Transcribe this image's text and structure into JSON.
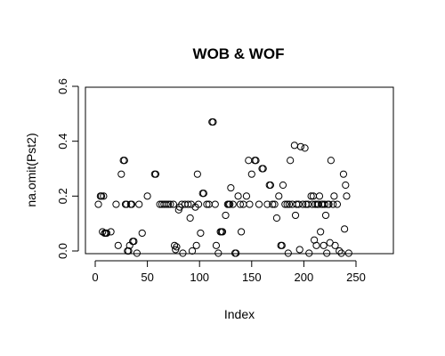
{
  "chart_data": {
    "type": "scatter",
    "title": "WOB & WOF",
    "xlabel": "Index",
    "ylabel": "na.omit(Pst2)",
    "xlim": [
      0,
      270
    ],
    "ylim": [
      0,
      0.6
    ],
    "x_ticks": [
      0,
      50,
      100,
      150,
      200,
      250
    ],
    "y_ticks": [
      0.0,
      0.2,
      0.4,
      0.6
    ],
    "x_tick_labels": [
      "0",
      "50",
      "100",
      "150",
      "200",
      "250"
    ],
    "y_tick_labels": [
      "0.0",
      "0.2",
      "0.4",
      "0.6"
    ],
    "grid": false,
    "marker": "open-circle",
    "series": [
      {
        "points": [
          [
            3,
            0.17
          ],
          [
            5,
            0.2
          ],
          [
            6,
            0.2
          ],
          [
            7,
            0.07
          ],
          [
            8,
            0.2
          ],
          [
            9,
            0.065
          ],
          [
            10,
            0.065
          ],
          [
            11,
            0.065
          ],
          [
            15,
            0.07
          ],
          [
            20,
            0.17
          ],
          [
            22,
            0.02
          ],
          [
            25,
            0.28
          ],
          [
            27,
            0.33
          ],
          [
            28,
            0.33
          ],
          [
            29,
            0.17
          ],
          [
            30,
            0.17
          ],
          [
            31,
            0.0
          ],
          [
            32,
            0.0
          ],
          [
            33,
            0.02
          ],
          [
            34,
            0.17
          ],
          [
            35,
            0.17
          ],
          [
            36,
            0.035
          ],
          [
            37,
            0.035
          ],
          [
            40,
            -0.02
          ],
          [
            42,
            0.17
          ],
          [
            45,
            0.065
          ],
          [
            50,
            0.2
          ],
          [
            57,
            0.28
          ],
          [
            58,
            0.28
          ],
          [
            62,
            0.17
          ],
          [
            64,
            0.17
          ],
          [
            66,
            0.17
          ],
          [
            68,
            0.17
          ],
          [
            70,
            0.17
          ],
          [
            72,
            0.17
          ],
          [
            75,
            0.17
          ],
          [
            76,
            0.02
          ],
          [
            77,
            0.005
          ],
          [
            78,
            0.015
          ],
          [
            80,
            0.15
          ],
          [
            81,
            0.16
          ],
          [
            83,
            0.17
          ],
          [
            84,
            -0.02
          ],
          [
            86,
            0.17
          ],
          [
            89,
            0.17
          ],
          [
            91,
            0.12
          ],
          [
            92,
            0.17
          ],
          [
            93,
            0.0
          ],
          [
            96,
            0.16
          ],
          [
            97,
            0.02
          ],
          [
            98,
            0.28
          ],
          [
            99,
            0.17
          ],
          [
            101,
            0.065
          ],
          [
            103,
            0.21
          ],
          [
            104,
            0.21
          ],
          [
            107,
            0.17
          ],
          [
            109,
            0.17
          ],
          [
            112,
            0.47
          ],
          [
            113,
            0.47
          ],
          [
            115,
            0.17
          ],
          [
            116,
            0.02
          ],
          [
            118,
            -0.02
          ],
          [
            120,
            0.07
          ],
          [
            121,
            0.07
          ],
          [
            122,
            0.07
          ],
          [
            125,
            0.13
          ],
          [
            127,
            0.17
          ],
          [
            128,
            0.17
          ],
          [
            129,
            0.17
          ],
          [
            130,
            0.23
          ],
          [
            132,
            0.17
          ],
          [
            134,
            -0.02
          ],
          [
            135,
            -0.02
          ],
          [
            137,
            0.2
          ],
          [
            139,
            0.17
          ],
          [
            140,
            0.07
          ],
          [
            142,
            0.17
          ],
          [
            145,
            0.2
          ],
          [
            147,
            0.33
          ],
          [
            148,
            0.17
          ],
          [
            150,
            0.28
          ],
          [
            153,
            0.33
          ],
          [
            154,
            0.33
          ],
          [
            157,
            0.17
          ],
          [
            160,
            0.3
          ],
          [
            161,
            0.3
          ],
          [
            165,
            0.17
          ],
          [
            167,
            0.24
          ],
          [
            168,
            0.24
          ],
          [
            170,
            0.17
          ],
          [
            172,
            0.17
          ],
          [
            174,
            0.12
          ],
          [
            176,
            0.2
          ],
          [
            178,
            0.02
          ],
          [
            179,
            0.02
          ],
          [
            180,
            0.24
          ],
          [
            182,
            0.17
          ],
          [
            184,
            0.17
          ],
          [
            185,
            -0.02
          ],
          [
            186,
            0.17
          ],
          [
            187,
            0.33
          ],
          [
            189,
            0.17
          ],
          [
            191,
            0.385
          ],
          [
            192,
            0.13
          ],
          [
            193,
            0.17
          ],
          [
            195,
            0.17
          ],
          [
            196,
            0.005
          ],
          [
            197,
            0.38
          ],
          [
            199,
            0.17
          ],
          [
            201,
            0.375
          ],
          [
            202,
            0.17
          ],
          [
            204,
            0.17
          ],
          [
            205,
            -0.02
          ],
          [
            207,
            0.2
          ],
          [
            208,
            0.17
          ],
          [
            209,
            0.2
          ],
          [
            210,
            0.04
          ],
          [
            211,
            0.17
          ],
          [
            212,
            0.02
          ],
          [
            213,
            0.17
          ],
          [
            214,
            0.17
          ],
          [
            215,
            0.2
          ],
          [
            216,
            0.07
          ],
          [
            217,
            0.17
          ],
          [
            218,
            0.17
          ],
          [
            219,
            0.02
          ],
          [
            220,
            0.17
          ],
          [
            221,
            0.13
          ],
          [
            222,
            -0.02
          ],
          [
            223,
            0.17
          ],
          [
            224,
            0.17
          ],
          [
            225,
            0.03
          ],
          [
            226,
            0.33
          ],
          [
            228,
            0.17
          ],
          [
            229,
            0.2
          ],
          [
            230,
            0.02
          ],
          [
            232,
            0.17
          ],
          [
            234,
            0.0
          ],
          [
            236,
            -0.02
          ],
          [
            238,
            0.28
          ],
          [
            239,
            0.08
          ],
          [
            240,
            0.24
          ],
          [
            241,
            0.2
          ],
          [
            243,
            -0.02
          ]
        ]
      }
    ]
  }
}
